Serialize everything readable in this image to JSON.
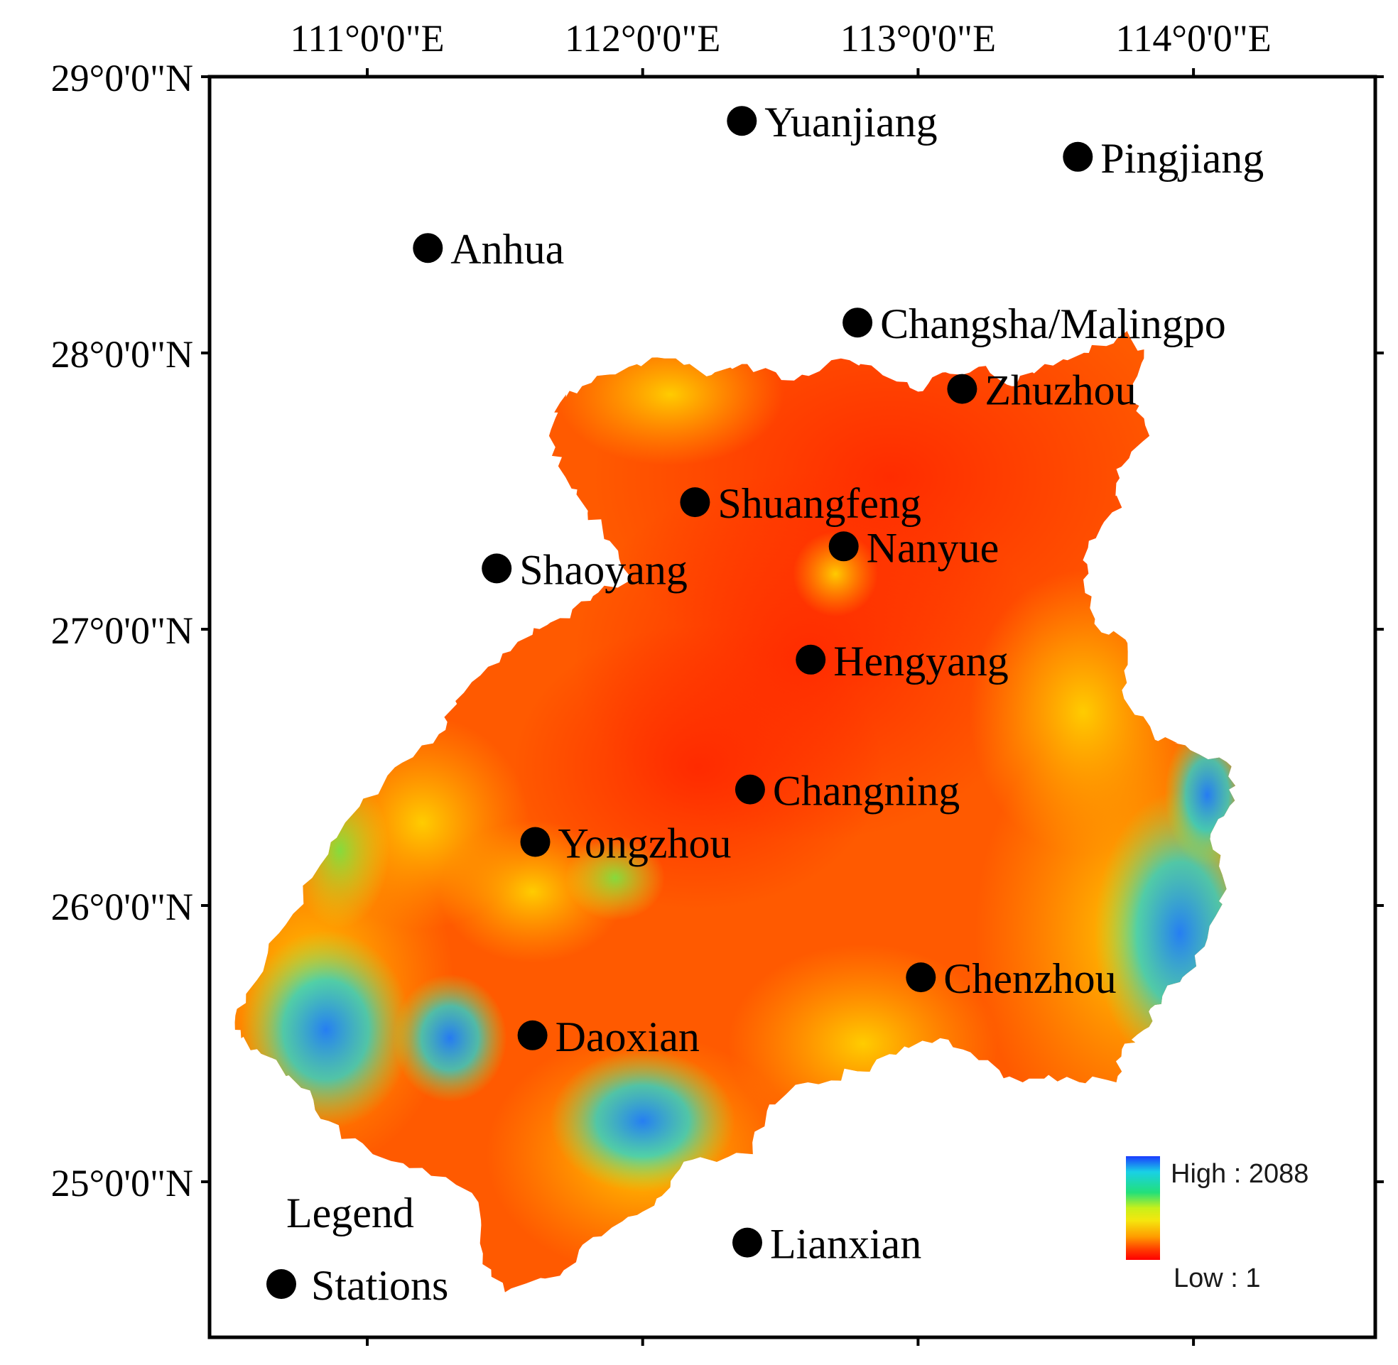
{
  "map": {
    "axes": {
      "top_ticks": [
        "111°0'0\"E",
        "112°0'0\"E",
        "113°0'0\"E",
        "114°0'0\"E"
      ],
      "left_ticks": [
        "29°0'0\"N",
        "28°0'0\"N",
        "27°0'0\"N",
        "26°0'0\"N",
        "25°0'0\"N"
      ]
    },
    "extent": {
      "lon_min": 110.42,
      "lon_max": 114.68,
      "lat_min": 24.44,
      "lat_max": 29.03
    },
    "stations": [
      {
        "name": "Yuanjiang",
        "lon": 112.36,
        "lat": 28.84
      },
      {
        "name": "Pingjiang",
        "lon": 113.58,
        "lat": 28.71
      },
      {
        "name": "Anhua",
        "lon": 111.22,
        "lat": 28.38
      },
      {
        "name": "Changsha/Malingpo",
        "lon": 112.78,
        "lat": 28.11
      },
      {
        "name": "Zhuzhou",
        "lon": 113.16,
        "lat": 27.87
      },
      {
        "name": "Shuangfeng",
        "lon": 112.19,
        "lat": 27.46
      },
      {
        "name": "Nanyue",
        "lon": 112.73,
        "lat": 27.3
      },
      {
        "name": "Shaoyang",
        "lon": 111.47,
        "lat": 27.22
      },
      {
        "name": "Hengyang",
        "lon": 112.61,
        "lat": 26.89
      },
      {
        "name": "Changning",
        "lon": 112.39,
        "lat": 26.42
      },
      {
        "name": "Yongzhou",
        "lon": 111.61,
        "lat": 26.23
      },
      {
        "name": "Chenzhou",
        "lon": 113.01,
        "lat": 25.74
      },
      {
        "name": "Daoxian",
        "lon": 111.6,
        "lat": 25.53
      },
      {
        "name": "Lianxian",
        "lon": 112.38,
        "lat": 24.78
      }
    ],
    "legend": {
      "title": "Legend",
      "stations_label": "Stations",
      "high_label": "High : 2088",
      "low_label": "Low : 1",
      "colors": [
        "#1a3cff",
        "#19d0e6",
        "#22e07a",
        "#c8f01a",
        "#f5e60e",
        "#ff9a00",
        "#ff3c00",
        "#ff0000"
      ]
    },
    "terrain_colors": {
      "base": "#ff5a00",
      "low": "#ff3a00",
      "mid": "#ffc000",
      "high_green": "#a6e632",
      "high_cyan": "#2ad6c8",
      "peak": "#1a55ff"
    }
  }
}
